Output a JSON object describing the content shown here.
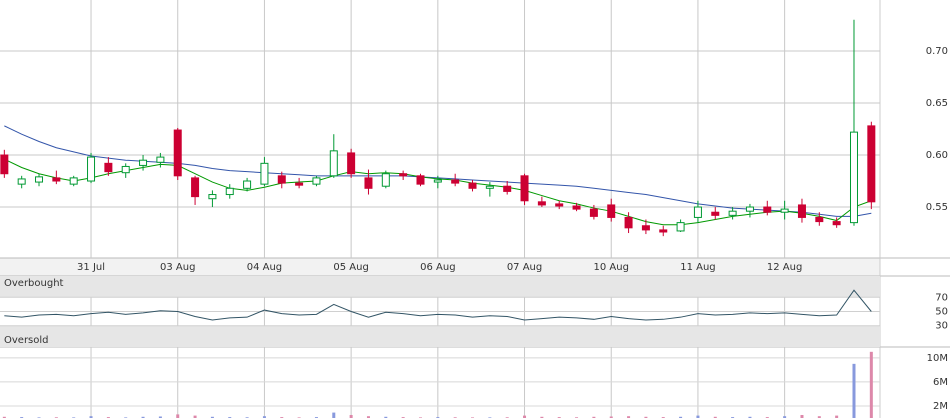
{
  "chart_data": [
    {
      "type": "candlestick",
      "x": [
        -1.0,
        -0.8,
        -0.6,
        -0.4,
        -0.2,
        0.0,
        0.2,
        0.4,
        0.6,
        0.8,
        1.0,
        1.2,
        1.4,
        1.6,
        1.8,
        2.0,
        2.2,
        2.4,
        2.6,
        2.8,
        3.0,
        3.2,
        3.4,
        3.6,
        3.8,
        4.0,
        4.2,
        4.4,
        4.6,
        4.8,
        5.0,
        5.2,
        5.4,
        5.6,
        5.8,
        6.0,
        6.2,
        6.4,
        6.6,
        6.8,
        7.0,
        7.2,
        7.4,
        7.6,
        7.8,
        8.0,
        8.2,
        8.4,
        8.6,
        8.8,
        9.0
      ],
      "xlim": [
        -1.05,
        9.1
      ],
      "xticks": [
        {
          "value": 0,
          "label": "31 Jul"
        },
        {
          "value": 1,
          "label": "03 Aug"
        },
        {
          "value": 2,
          "label": "04 Aug"
        },
        {
          "value": 3,
          "label": "05 Aug"
        },
        {
          "value": 4,
          "label": "06 Aug"
        },
        {
          "value": 5,
          "label": "07 Aug"
        },
        {
          "value": 6,
          "label": "10 Aug"
        },
        {
          "value": 7,
          "label": "11 Aug"
        },
        {
          "value": 8,
          "label": "12 Aug"
        }
      ],
      "ylim": [
        0.501,
        0.749
      ],
      "yticks": [
        0.55,
        {
          "value": 0.6,
          "label": "0.60"
        },
        0.65,
        {
          "value": 0.7,
          "label": "0.70"
        }
      ],
      "grid": true,
      "up_color": "#009933",
      "down_color": "#cc0033",
      "open": [
        0.6,
        0.572,
        0.574,
        0.578,
        0.572,
        0.575,
        0.592,
        0.583,
        0.59,
        0.593,
        0.624,
        0.578,
        0.558,
        0.562,
        0.568,
        0.572,
        0.58,
        0.573,
        0.572,
        0.58,
        0.602,
        0.578,
        0.57,
        0.582,
        0.58,
        0.574,
        0.576,
        0.573,
        0.568,
        0.57,
        0.58,
        0.555,
        0.553,
        0.551,
        0.548,
        0.552,
        0.54,
        0.532,
        0.528,
        0.527,
        0.54,
        0.545,
        0.542,
        0.546,
        0.55,
        0.545,
        0.552,
        0.54,
        0.536,
        0.535,
        0.628
      ],
      "high": [
        0.605,
        0.58,
        0.582,
        0.585,
        0.58,
        0.602,
        0.598,
        0.592,
        0.6,
        0.602,
        0.626,
        0.58,
        0.566,
        0.572,
        0.578,
        0.598,
        0.584,
        0.578,
        0.58,
        0.62,
        0.606,
        0.586,
        0.585,
        0.585,
        0.582,
        0.58,
        0.582,
        0.576,
        0.574,
        0.575,
        0.582,
        0.56,
        0.556,
        0.554,
        0.552,
        0.558,
        0.545,
        0.538,
        0.532,
        0.538,
        0.556,
        0.55,
        0.55,
        0.553,
        0.556,
        0.556,
        0.558,
        0.545,
        0.54,
        0.73,
        0.632
      ],
      "low": [
        0.578,
        0.568,
        0.57,
        0.572,
        0.57,
        0.573,
        0.58,
        0.578,
        0.585,
        0.588,
        0.576,
        0.552,
        0.55,
        0.558,
        0.565,
        0.57,
        0.568,
        0.568,
        0.57,
        0.578,
        0.578,
        0.562,
        0.568,
        0.576,
        0.57,
        0.568,
        0.57,
        0.565,
        0.56,
        0.562,
        0.552,
        0.55,
        0.548,
        0.546,
        0.538,
        0.536,
        0.525,
        0.524,
        0.522,
        0.526,
        0.535,
        0.538,
        0.538,
        0.54,
        0.542,
        0.538,
        0.535,
        0.532,
        0.53,
        0.532,
        0.548
      ],
      "close": [
        0.582,
        0.577,
        0.579,
        0.575,
        0.578,
        0.598,
        0.584,
        0.589,
        0.595,
        0.598,
        0.58,
        0.56,
        0.562,
        0.568,
        0.575,
        0.592,
        0.573,
        0.571,
        0.578,
        0.604,
        0.582,
        0.568,
        0.582,
        0.58,
        0.572,
        0.576,
        0.573,
        0.568,
        0.57,
        0.565,
        0.556,
        0.552,
        0.551,
        0.548,
        0.541,
        0.54,
        0.53,
        0.528,
        0.526,
        0.535,
        0.55,
        0.542,
        0.546,
        0.55,
        0.545,
        0.548,
        0.54,
        0.536,
        0.533,
        0.622,
        0.555
      ],
      "series": [
        {
          "color": "#3355aa",
          "values": [
            0.628,
            0.62,
            0.613,
            0.607,
            0.603,
            0.599,
            0.597,
            0.595,
            0.594,
            0.593,
            0.592,
            0.59,
            0.587,
            0.585,
            0.584,
            0.583,
            0.582,
            0.581,
            0.58,
            0.58,
            0.58,
            0.58,
            0.58,
            0.58,
            0.579,
            0.578,
            0.577,
            0.576,
            0.575,
            0.574,
            0.573,
            0.572,
            0.571,
            0.57,
            0.568,
            0.566,
            0.564,
            0.562,
            0.559,
            0.556,
            0.553,
            0.551,
            0.549,
            0.548,
            0.547,
            0.546,
            0.545,
            0.543,
            0.541,
            0.541,
            0.544
          ]
        },
        {
          "color": "#009900",
          "values": [
            0.596,
            0.588,
            0.582,
            0.578,
            0.575,
            0.578,
            0.582,
            0.585,
            0.588,
            0.591,
            0.59,
            0.582,
            0.574,
            0.568,
            0.566,
            0.569,
            0.573,
            0.574,
            0.575,
            0.58,
            0.584,
            0.582,
            0.583,
            0.582,
            0.579,
            0.577,
            0.576,
            0.573,
            0.571,
            0.569,
            0.566,
            0.561,
            0.556,
            0.553,
            0.549,
            0.546,
            0.541,
            0.536,
            0.533,
            0.533,
            0.535,
            0.538,
            0.541,
            0.543,
            0.545,
            0.546,
            0.544,
            0.541,
            0.537,
            0.55,
            0.556
          ]
        }
      ]
    },
    {
      "type": "line",
      "annotations": [
        "Overbought",
        "Oversold"
      ],
      "ylim": [
        0,
        100
      ],
      "yticks": [
        30,
        50,
        70
      ],
      "color": "#335566",
      "values": [
        44,
        42,
        45,
        46,
        44,
        47,
        49,
        46,
        48,
        51,
        50,
        43,
        38,
        41,
        42,
        52,
        47,
        45,
        46,
        60,
        50,
        42,
        49,
        47,
        44,
        46,
        45,
        42,
        44,
        43,
        38,
        40,
        42,
        41,
        39,
        43,
        40,
        38,
        39,
        42,
        47,
        45,
        46,
        48,
        47,
        48,
        46,
        44,
        45,
        80,
        50
      ]
    },
    {
      "type": "bar",
      "ylim": [
        0,
        11800000
      ],
      "yticks": [
        {
          "value": 2000000,
          "label": "2M"
        },
        {
          "value": 6000000,
          "label": "6M"
        },
        {
          "value": 10000000,
          "label": "10M"
        }
      ],
      "up_color": "#8899dd",
      "down_color": "#dd88aa",
      "values": [
        200000,
        150000,
        100000,
        120000,
        100000,
        300000,
        150000,
        100000,
        200000,
        250000,
        600000,
        400000,
        200000,
        150000,
        120000,
        300000,
        150000,
        100000,
        150000,
        900000,
        500000,
        300000,
        200000,
        150000,
        100000,
        150000,
        120000,
        100000,
        100000,
        120000,
        400000,
        200000,
        150000,
        120000,
        200000,
        250000,
        300000,
        200000,
        150000,
        200000,
        400000,
        200000,
        150000,
        200000,
        150000,
        300000,
        500000,
        300000,
        400000,
        9000000,
        11000000
      ]
    }
  ]
}
